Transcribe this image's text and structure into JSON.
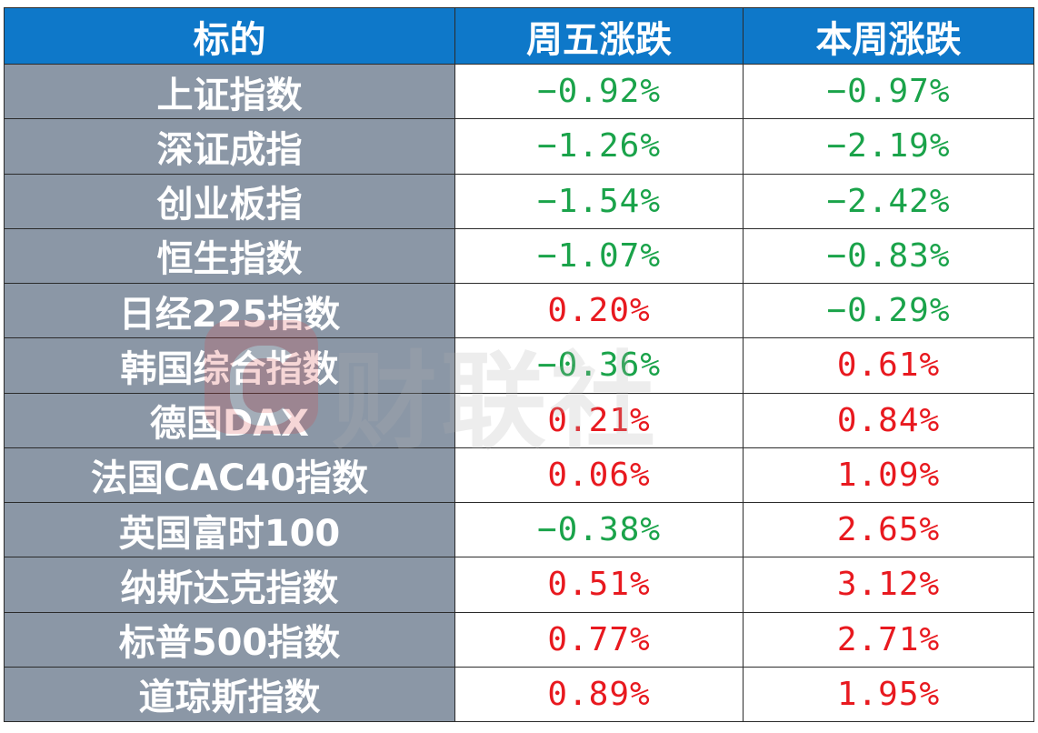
{
  "table": {
    "headers": [
      "标的",
      "周五涨跌",
      "本周涨跌"
    ],
    "rows": [
      {
        "name": "上证指数",
        "friday": "−0.92%",
        "week": "−0.97%",
        "friday_dir": "down",
        "week_dir": "down"
      },
      {
        "name": "深证成指",
        "friday": "−1.26%",
        "week": "−2.19%",
        "friday_dir": "down",
        "week_dir": "down"
      },
      {
        "name": "创业板指",
        "friday": "−1.54%",
        "week": "−2.42%",
        "friday_dir": "down",
        "week_dir": "down"
      },
      {
        "name": "恒生指数",
        "friday": "−1.07%",
        "week": "−0.83%",
        "friday_dir": "down",
        "week_dir": "down"
      },
      {
        "name": "日经225指数",
        "friday": "0.20%",
        "week": "−0.29%",
        "friday_dir": "up",
        "week_dir": "down"
      },
      {
        "name": "韩国综合指数",
        "friday": "−0.36%",
        "week": "0.61%",
        "friday_dir": "down",
        "week_dir": "up"
      },
      {
        "name": "德国DAX",
        "friday": "0.21%",
        "week": "0.84%",
        "friday_dir": "up",
        "week_dir": "up"
      },
      {
        "name": "法国CAC40指数",
        "friday": "0.06%",
        "week": "1.09%",
        "friday_dir": "up",
        "week_dir": "up"
      },
      {
        "name": "英国富时100",
        "friday": "−0.38%",
        "week": "2.65%",
        "friday_dir": "down",
        "week_dir": "up"
      },
      {
        "name": "纳斯达克指数",
        "friday": "0.51%",
        "week": "3.12%",
        "friday_dir": "up",
        "week_dir": "up"
      },
      {
        "name": "标普500指数",
        "friday": "0.77%",
        "week": "2.71%",
        "friday_dir": "up",
        "week_dir": "up"
      },
      {
        "name": "道琼斯指数",
        "friday": "0.89%",
        "week": "1.95%",
        "friday_dir": "up",
        "week_dir": "up"
      }
    ]
  },
  "colors": {
    "header_bg": "#0e78c9",
    "name_col_bg": "#8b97a6",
    "negative": "#1aa34a",
    "positive": "#e8191f"
  },
  "watermark": {
    "text": "财联社",
    "logo_icon": "cls-logo-icon"
  }
}
